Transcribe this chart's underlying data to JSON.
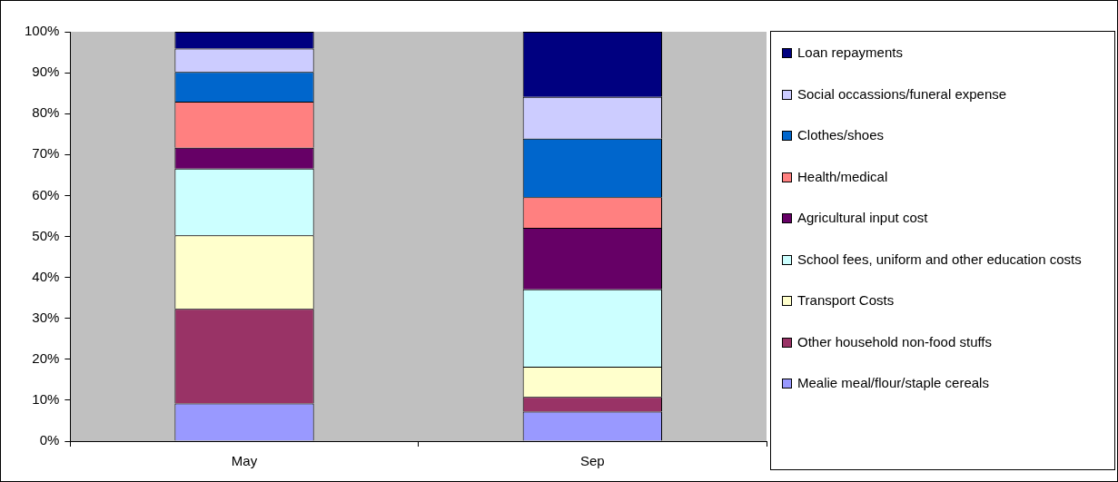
{
  "chart_data": {
    "type": "bar",
    "stacked": true,
    "categories": [
      "May",
      "Sep"
    ],
    "ylim": [
      0,
      100
    ],
    "yticks": [
      {
        "value": 0,
        "label": "0%"
      },
      {
        "value": 10,
        "label": "10%"
      },
      {
        "value": 20,
        "label": "20%"
      },
      {
        "value": 30,
        "label": "30%"
      },
      {
        "value": 40,
        "label": "40%"
      },
      {
        "value": 50,
        "label": "50%"
      },
      {
        "value": 60,
        "label": "60%"
      },
      {
        "value": 70,
        "label": "70%"
      },
      {
        "value": 80,
        "label": "80%"
      },
      {
        "value": 90,
        "label": "90%"
      },
      {
        "value": 100,
        "label": "100%"
      }
    ],
    "legend": "right",
    "grid": false,
    "series": [
      {
        "name": "Mealie meal/flour/staple cereals",
        "color": "#9999ff",
        "values": [
          9.2,
          7.2
        ]
      },
      {
        "name": "Other household non-food stuffs",
        "color": "#993366",
        "values": [
          23.1,
          3.6
        ]
      },
      {
        "name": "Transport Costs",
        "color": "#ffffcc",
        "values": [
          18.0,
          7.4
        ]
      },
      {
        "name": "School fees, uniform and other education costs",
        "color": "#ccffff",
        "values": [
          16.3,
          18.9
        ]
      },
      {
        "name": "Agricultural input cost",
        "color": "#660066",
        "values": [
          5.1,
          15.0
        ]
      },
      {
        "name": "Health/medical",
        "color": "#ff8080",
        "values": [
          11.2,
          7.5
        ]
      },
      {
        "name": "Clothes/shoes",
        "color": "#0066cc",
        "values": [
          7.3,
          14.3
        ]
      },
      {
        "name": "Social occassions/funeral expense",
        "color": "#ccccff",
        "values": [
          5.7,
          10.2
        ]
      },
      {
        "name": "Loan repayments",
        "color": "#000080",
        "values": [
          4.1,
          15.9
        ]
      }
    ]
  }
}
